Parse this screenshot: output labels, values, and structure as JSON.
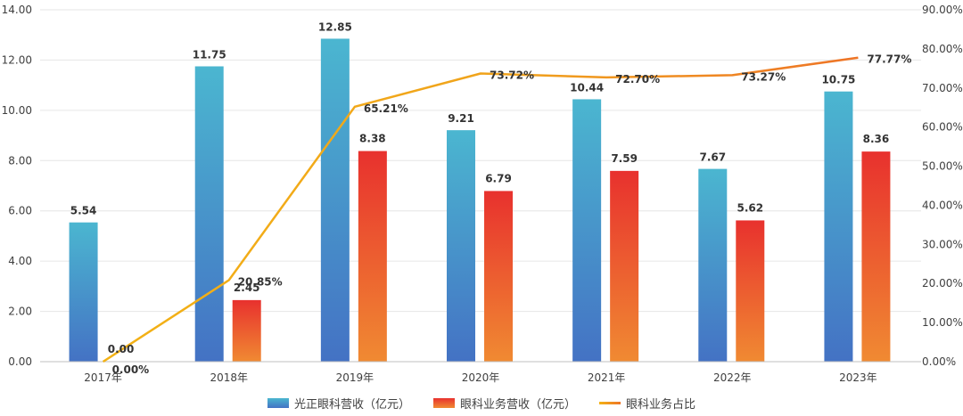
{
  "chart_data": {
    "type": "bar",
    "categories": [
      "2017年",
      "2018年",
      "2019年",
      "2020年",
      "2021年",
      "2022年",
      "2023年"
    ],
    "series": [
      {
        "name": "光正眼科营收（亿元）",
        "type": "bar",
        "axis": "left",
        "values": [
          5.54,
          11.75,
          12.85,
          9.21,
          10.44,
          7.67,
          10.75
        ],
        "labels": [
          "5.54",
          "11.75",
          "12.85",
          "9.21",
          "10.44",
          "7.67",
          "10.75"
        ],
        "color_top": "#4bb6d0",
        "color_bottom": "#4472c4"
      },
      {
        "name": "眼科业务营收（亿元）",
        "type": "bar",
        "axis": "right_pair",
        "values": [
          0.0,
          2.45,
          8.38,
          6.79,
          7.59,
          5.62,
          8.36
        ],
        "labels": [
          "0.00",
          "2.45",
          "8.38",
          "6.79",
          "7.59",
          "5.62",
          "8.36"
        ],
        "color_top": "#e8312e",
        "color_bottom": "#f08a32"
      },
      {
        "name": "眼科业务占比",
        "type": "line",
        "axis": "right",
        "values": [
          0.0,
          20.85,
          65.21,
          73.72,
          72.7,
          73.27,
          77.77
        ],
        "labels": [
          "0.00%",
          "20.85%",
          "65.21%",
          "73.72%",
          "72.70%",
          "73.27%",
          "77.77%"
        ],
        "color_start": "#f3b215",
        "color_end": "#ee7526"
      }
    ],
    "y_left": {
      "range": [
        0,
        14
      ],
      "ticks": [
        "0.00",
        "2.00",
        "4.00",
        "6.00",
        "8.00",
        "10.00",
        "12.00",
        "14.00"
      ]
    },
    "y_right": {
      "range": [
        0,
        90
      ],
      "ticks": [
        "0.00%",
        "10.00%",
        "20.00%",
        "30.00%",
        "40.00%",
        "50.00%",
        "60.00%",
        "70.00%",
        "80.00%",
        "90.00%"
      ]
    },
    "grid": true,
    "legend": "bottom"
  }
}
